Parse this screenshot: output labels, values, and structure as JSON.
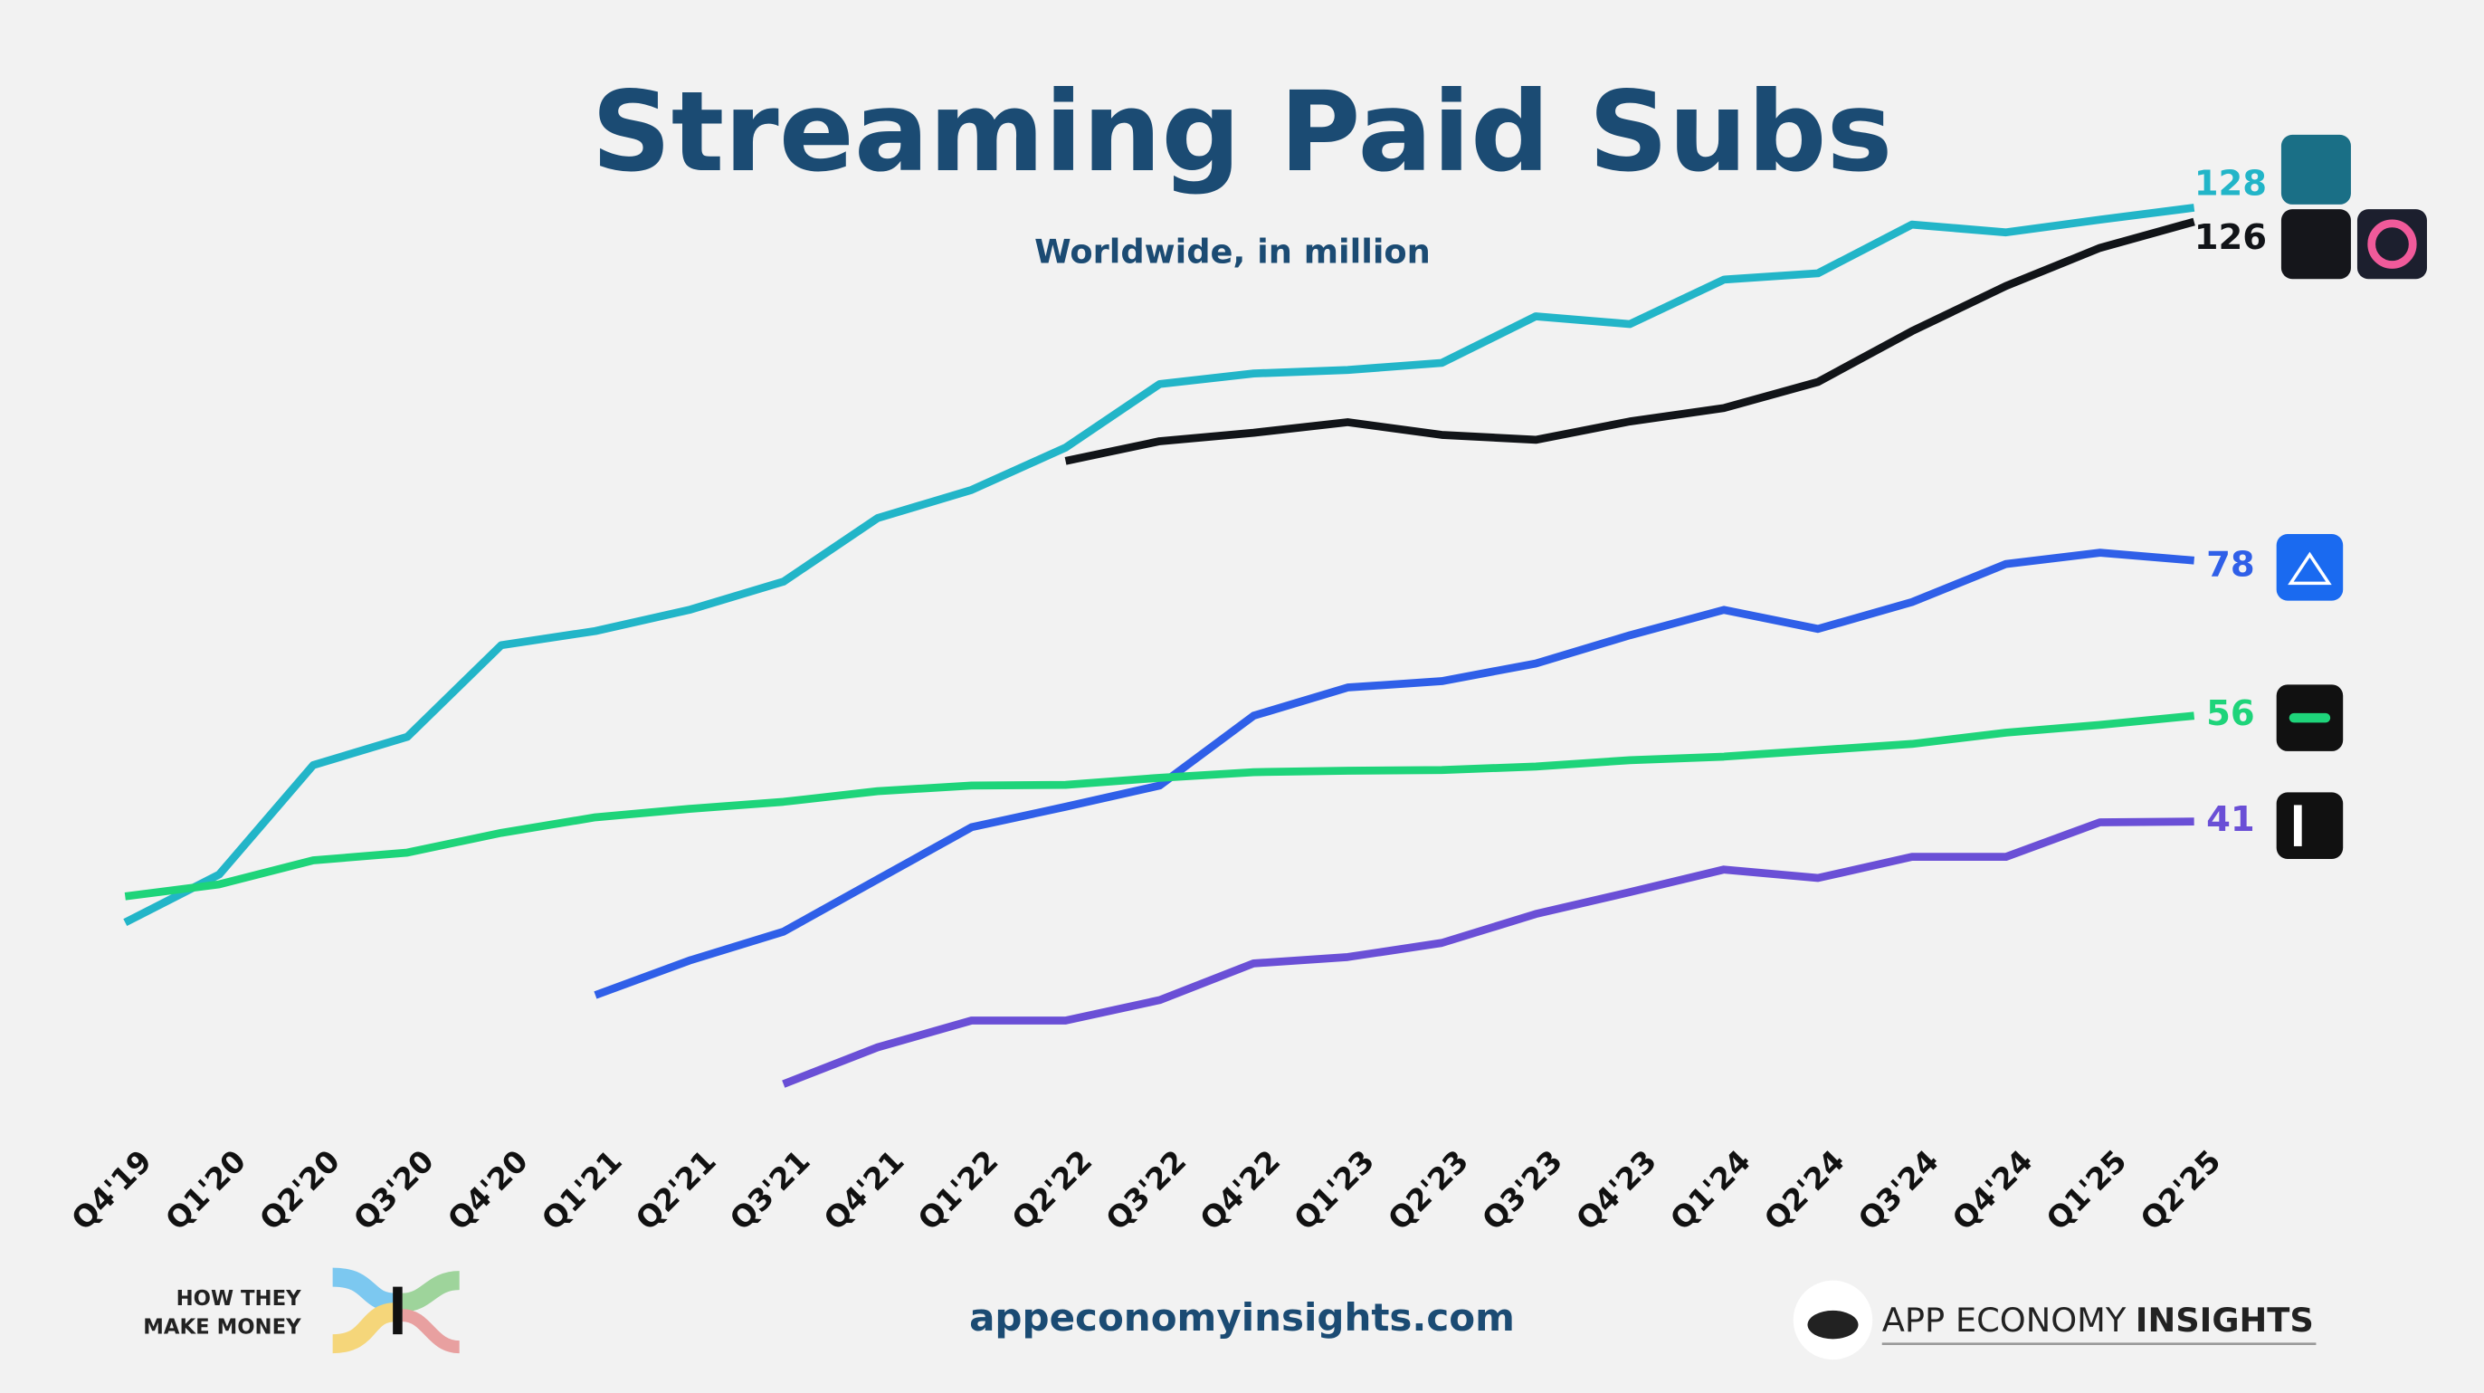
{
  "chart_data": {
    "type": "line",
    "title": "Streaming Paid Subs",
    "subtitle": "Worldwide, in million",
    "categories": [
      "Q4'19",
      "Q1'20",
      "Q2'20",
      "Q3'20",
      "Q4'20",
      "Q1'21",
      "Q2'21",
      "Q3'21",
      "Q4'21",
      "Q1'22",
      "Q2'22",
      "Q3'22",
      "Q4'22",
      "Q1'23",
      "Q2'23",
      "Q3'23",
      "Q4'23",
      "Q1'24",
      "Q2'24",
      "Q3'24",
      "Q4'24",
      "Q1'25",
      "Q2'25"
    ],
    "series": [
      {
        "color": "#22b5c8",
        "values": [
          26.7,
          33.5,
          49,
          53,
          66,
          68,
          71,
          75,
          84,
          88,
          94,
          103,
          104.5,
          105,
          106,
          112.6,
          111.5,
          117.8,
          118.7,
          125.6,
          124.5,
          126.3,
          128
        ]
      },
      {
        "color": "#111418",
        "values": [
          null,
          null,
          null,
          null,
          null,
          null,
          null,
          null,
          null,
          null,
          92.1,
          94.9,
          96.1,
          97.6,
          95.8,
          95.1,
          97.7,
          99.6,
          103.3,
          110.5,
          116.9,
          122.3,
          126
        ]
      },
      {
        "color": "#2f5fe8",
        "values": [
          null,
          null,
          null,
          null,
          null,
          16.4,
          21.3,
          25.4,
          32.8,
          40.2,
          43.1,
          46.1,
          56,
          60,
          60.9,
          63.4,
          67.4,
          71,
          68.3,
          72.1,
          77.5,
          79.1,
          78
        ]
      },
      {
        "color": "#1ed47a",
        "values": [
          30.4,
          32.1,
          35.5,
          36.6,
          39.4,
          41.6,
          42.8,
          43.8,
          45.3,
          46.1,
          46.2,
          47.2,
          48,
          48.2,
          48.3,
          48.8,
          49.7,
          50.2,
          51.1,
          52,
          53.6,
          54.7,
          56
        ]
      },
      {
        "color": "#6a4fd6",
        "values": [
          null,
          null,
          null,
          null,
          null,
          null,
          null,
          3.8,
          9,
          12.8,
          12.8,
          15.7,
          20.9,
          21.8,
          23.8,
          27.9,
          31,
          34.2,
          33,
          36,
          36,
          40.9,
          41
        ]
      }
    ]
  },
  "footer": {
    "brand_left": [
      "HOW THEY",
      "MAKE MONEY"
    ],
    "website": "appeconomyinsights.com",
    "brand_right": [
      "APP ECONOMY",
      "INSIGHTS"
    ]
  }
}
